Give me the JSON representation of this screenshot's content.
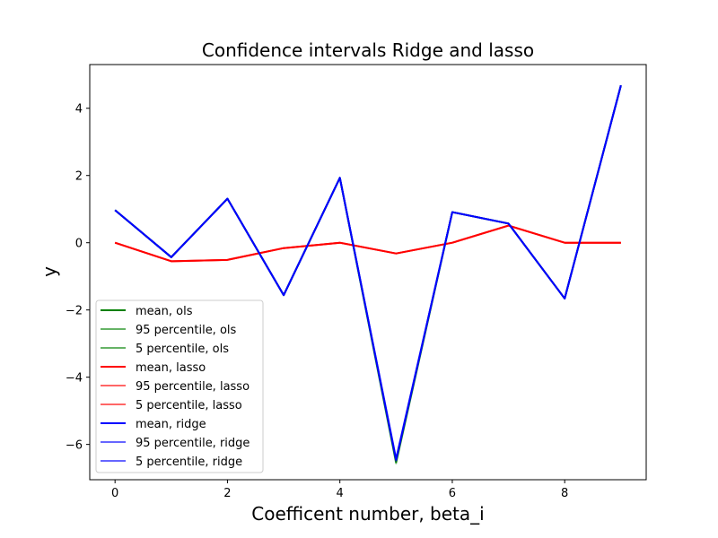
{
  "chart_data": {
    "type": "line",
    "title": "Confidence intervals Ridge and lasso",
    "xlabel": "Coefficent number, beta_i",
    "ylabel": "y",
    "xlim": [
      -0.45,
      9.45
    ],
    "ylim": [
      -7.05,
      5.3
    ],
    "xticks": [
      0,
      2,
      4,
      6,
      8
    ],
    "yticks": [
      -6,
      -4,
      -2,
      0,
      2,
      4
    ],
    "grid": false,
    "legend_position": "lower-left",
    "x": [
      0,
      1,
      2,
      3,
      4,
      5,
      6,
      7,
      8,
      9
    ],
    "series": [
      {
        "name": "mean, ols",
        "color": "#008000",
        "opacity": 1.0,
        "values": [
          0.97,
          -0.43,
          1.31,
          -1.56,
          1.93,
          -6.52,
          0.91,
          0.57,
          -1.66,
          4.68
        ]
      },
      {
        "name": "95 percentile, ols",
        "color": "#008000",
        "opacity": 0.6,
        "values": [
          0.97,
          -0.43,
          1.31,
          -1.56,
          1.93,
          -6.48,
          0.91,
          0.57,
          -1.66,
          4.68
        ]
      },
      {
        "name": "5 percentile, ols",
        "color": "#008000",
        "opacity": 0.6,
        "values": [
          0.97,
          -0.43,
          1.31,
          -1.56,
          1.93,
          -6.56,
          0.91,
          0.57,
          -1.66,
          4.68
        ]
      },
      {
        "name": "mean, lasso",
        "color": "#ff0000",
        "opacity": 1.0,
        "values": [
          0.0,
          -0.55,
          -0.51,
          -0.16,
          0.0,
          -0.32,
          0.0,
          0.51,
          0.0,
          0.0
        ]
      },
      {
        "name": "95 percentile, lasso",
        "color": "#ff0000",
        "opacity": 0.6,
        "values": [
          0.0,
          -0.55,
          -0.51,
          -0.16,
          0.0,
          -0.32,
          0.0,
          0.51,
          0.0,
          0.0
        ]
      },
      {
        "name": "5 percentile, lasso",
        "color": "#ff0000",
        "opacity": 0.6,
        "values": [
          0.0,
          -0.55,
          -0.51,
          -0.16,
          0.0,
          -0.32,
          0.0,
          0.51,
          0.0,
          0.0
        ]
      },
      {
        "name": "mean, ridge",
        "color": "#0000ff",
        "opacity": 1.0,
        "values": [
          0.97,
          -0.43,
          1.31,
          -1.56,
          1.93,
          -6.45,
          0.91,
          0.57,
          -1.66,
          4.68
        ]
      },
      {
        "name": "95 percentile, ridge",
        "color": "#0000ff",
        "opacity": 0.6,
        "values": [
          0.97,
          -0.43,
          1.31,
          -1.56,
          1.93,
          -6.42,
          0.91,
          0.57,
          -1.66,
          4.68
        ]
      },
      {
        "name": "5 percentile, ridge",
        "color": "#0000ff",
        "opacity": 0.6,
        "values": [
          0.97,
          -0.43,
          1.31,
          -1.56,
          1.93,
          -6.48,
          0.91,
          0.57,
          -1.66,
          4.68
        ]
      }
    ]
  }
}
